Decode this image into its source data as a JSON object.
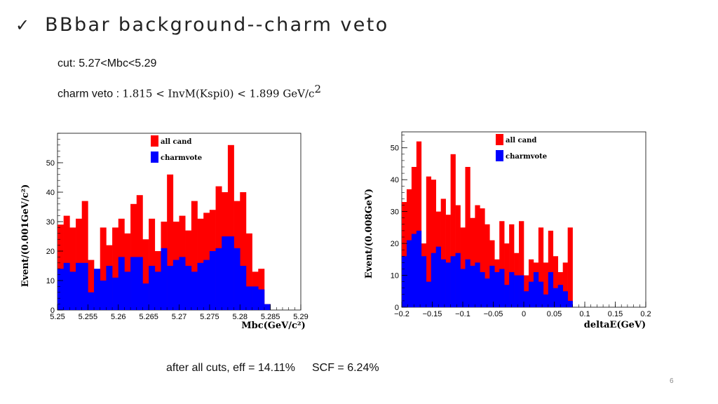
{
  "header": {
    "check_icon": "✓",
    "title": "BBbar background--charm veto"
  },
  "cut_text": "cut: 5.27<Mbc<5.29",
  "veto": {
    "label": "charm veto : ",
    "expression": "1.815 < InvM(Kspi0) < 1.899 GeV/c",
    "superscript": "2"
  },
  "footer": {
    "efficiency": "after all cuts, eff = 14.11%",
    "scf": "SCF = 6.24%"
  },
  "page_number": "6",
  "colors": {
    "all_cand": "#ff0000",
    "charmvote": "#0000ff"
  },
  "chart_data": [
    {
      "type": "bar",
      "title": "",
      "xlabel": "Mbc(GeV/c²)",
      "ylabel": "Event/(0.001GeV/c²)",
      "xlim": [
        5.25,
        5.29
      ],
      "ylim": [
        0,
        60
      ],
      "xticks": [
        "5.25",
        "5.255",
        "5.26",
        "5.265",
        "5.27",
        "5.275",
        "5.28",
        "5.285",
        "5.29"
      ],
      "yticks": [
        "0",
        "10",
        "20",
        "30",
        "40",
        "50"
      ],
      "legend": [
        "all cand",
        "charmvote"
      ],
      "legend_position": "top-center",
      "bin_width": 0.001,
      "bin_start": 5.25,
      "series": [
        {
          "name": "all cand",
          "color": "#ff0000",
          "values": [
            29,
            32,
            28,
            31,
            37,
            17,
            13,
            28,
            22,
            28,
            31,
            26,
            36,
            39,
            24,
            31,
            20,
            30,
            46,
            30,
            32,
            27,
            37,
            31,
            33,
            34,
            42,
            40,
            56,
            37,
            40,
            26,
            13,
            14,
            2
          ]
        },
        {
          "name": "charmvote",
          "color": "#0000ff",
          "values": [
            14,
            16,
            13,
            16,
            16,
            6,
            14,
            10,
            15,
            11,
            18,
            13,
            18,
            18,
            9,
            15,
            13,
            21,
            15,
            17,
            18,
            15,
            13,
            16,
            17,
            20,
            21,
            25,
            25,
            21,
            15,
            8,
            8,
            7,
            2
          ]
        }
      ]
    },
    {
      "type": "bar",
      "title": "",
      "xlabel": "deltaE(GeV)",
      "ylabel": "Event/(0.008GeV)",
      "xlim": [
        -0.2,
        0.2
      ],
      "ylim": [
        0,
        55
      ],
      "xticks": [
        "−0.2",
        "−0.15",
        "−0.1",
        "−0.05",
        "0",
        "0.05",
        "0.1",
        "0.15",
        "0.2"
      ],
      "yticks": [
        "0",
        "10",
        "20",
        "30",
        "40",
        "50"
      ],
      "legend": [
        "all cand",
        "charmvote"
      ],
      "legend_position": "top-right",
      "bin_width": 0.008,
      "bin_start": -0.2,
      "series": [
        {
          "name": "all cand",
          "color": "#ff0000",
          "values": [
            33,
            37,
            44,
            52,
            20,
            41,
            40,
            30,
            34,
            29,
            48,
            32,
            25,
            44,
            28,
            32,
            31,
            26,
            21,
            15,
            27,
            20,
            26,
            17,
            27,
            10,
            15,
            14,
            25,
            14,
            24,
            16,
            11,
            14,
            25
          ]
        },
        {
          "name": "charmvote",
          "color": "#0000ff",
          "values": [
            16,
            21,
            23,
            24,
            16,
            8,
            17,
            19,
            15,
            14,
            16,
            17,
            12,
            15,
            13,
            14,
            11,
            9,
            13,
            11,
            12,
            7,
            11,
            10,
            10,
            5,
            8,
            11,
            8,
            4,
            11,
            6,
            7,
            5,
            2
          ]
        }
      ]
    }
  ]
}
